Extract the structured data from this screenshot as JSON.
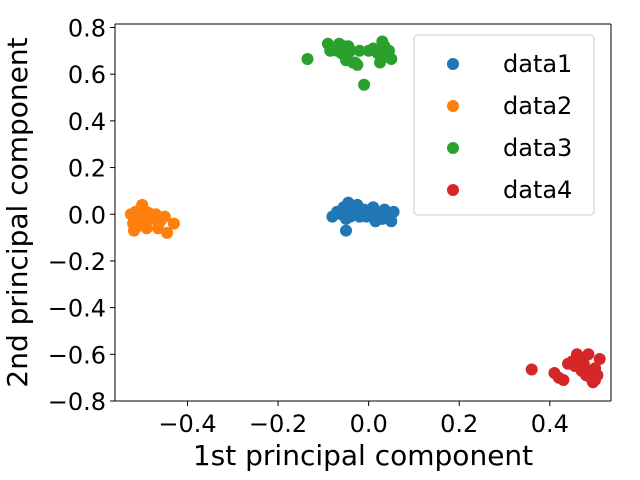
{
  "chart_data": {
    "type": "scatter",
    "title": "",
    "xlabel": "1st principal component",
    "ylabel": "2nd principal component",
    "xlim": [
      -0.56,
      0.535
    ],
    "ylim": [
      -0.8,
      0.815
    ],
    "xticks": [
      -0.4,
      -0.2,
      0.0,
      0.2,
      0.4
    ],
    "xtick_labels": [
      "−0.4",
      "−0.2",
      "0.0",
      "0.2",
      "0.4"
    ],
    "yticks": [
      -0.8,
      -0.6,
      -0.4,
      -0.2,
      0.0,
      0.2,
      0.4,
      0.6,
      0.8
    ],
    "ytick_labels": [
      "−0.8",
      "−0.6",
      "−0.4",
      "−0.2",
      "0.0",
      "0.2",
      "0.4",
      "0.6",
      "0.8"
    ],
    "grid": false,
    "legend_position": "upper-right",
    "series": [
      {
        "name": "data1",
        "color": "#1f77b4",
        "points": [
          [
            -0.08,
            -0.01
          ],
          [
            -0.07,
            0.01
          ],
          [
            -0.06,
            0.0
          ],
          [
            -0.055,
            0.03
          ],
          [
            -0.05,
            -0.02
          ],
          [
            -0.05,
            -0.07
          ],
          [
            -0.045,
            0.05
          ],
          [
            -0.04,
            0.02
          ],
          [
            -0.04,
            -0.01
          ],
          [
            -0.03,
            0.01
          ],
          [
            -0.025,
            0.04
          ],
          [
            -0.02,
            -0.01
          ],
          [
            -0.015,
            0.0
          ],
          [
            -0.01,
            0.02
          ],
          [
            -0.005,
            -0.01
          ],
          [
            0.0,
            0.01
          ],
          [
            0.01,
            0.03
          ],
          [
            0.015,
            -0.03
          ],
          [
            0.02,
            0.0
          ],
          [
            0.03,
            -0.02
          ],
          [
            0.035,
            0.02
          ],
          [
            0.04,
            0.01
          ],
          [
            0.045,
            -0.02
          ],
          [
            0.05,
            -0.03
          ],
          [
            0.055,
            0.01
          ],
          [
            0.005,
            0.02
          ]
        ]
      },
      {
        "name": "data2",
        "color": "#ff7f0e",
        "points": [
          [
            -0.525,
            0.0
          ],
          [
            -0.52,
            -0.04
          ],
          [
            -0.518,
            -0.07
          ],
          [
            -0.515,
            0.01
          ],
          [
            -0.51,
            -0.02
          ],
          [
            -0.508,
            -0.05
          ],
          [
            -0.505,
            0.02
          ],
          [
            -0.5,
            0.04
          ],
          [
            -0.5,
            -0.01
          ],
          [
            -0.495,
            -0.03
          ],
          [
            -0.49,
            -0.06
          ],
          [
            -0.49,
            0.01
          ],
          [
            -0.48,
            -0.02
          ],
          [
            -0.47,
            0.0
          ],
          [
            -0.465,
            -0.06
          ],
          [
            -0.46,
            -0.03
          ],
          [
            -0.45,
            -0.01
          ],
          [
            -0.445,
            -0.08
          ],
          [
            -0.43,
            -0.04
          ],
          [
            -0.498,
            -0.045
          ],
          [
            -0.485,
            0.005
          ]
        ]
      },
      {
        "name": "data3",
        "color": "#2ca02c",
        "points": [
          [
            -0.135,
            0.665
          ],
          [
            -0.09,
            0.73
          ],
          [
            -0.085,
            0.7
          ],
          [
            -0.08,
            0.71
          ],
          [
            -0.07,
            0.7
          ],
          [
            -0.065,
            0.73
          ],
          [
            -0.06,
            0.69
          ],
          [
            -0.055,
            0.72
          ],
          [
            -0.05,
            0.66
          ],
          [
            -0.045,
            0.72
          ],
          [
            -0.04,
            0.7
          ],
          [
            -0.035,
            0.65
          ],
          [
            -0.03,
            0.65
          ],
          [
            -0.025,
            0.64
          ],
          [
            -0.02,
            0.7
          ],
          [
            -0.01,
            0.555
          ],
          [
            0.0,
            0.7
          ],
          [
            0.01,
            0.71
          ],
          [
            0.02,
            0.69
          ],
          [
            0.025,
            0.65
          ],
          [
            0.03,
            0.74
          ],
          [
            0.035,
            0.72
          ],
          [
            0.04,
            0.675
          ],
          [
            0.05,
            0.665
          ],
          [
            0.045,
            0.7
          ]
        ]
      },
      {
        "name": "data4",
        "color": "#d62728",
        "points": [
          [
            0.36,
            -0.665
          ],
          [
            0.41,
            -0.68
          ],
          [
            0.42,
            -0.7
          ],
          [
            0.43,
            -0.71
          ],
          [
            0.44,
            -0.64
          ],
          [
            0.45,
            -0.63
          ],
          [
            0.455,
            -0.65
          ],
          [
            0.46,
            -0.6
          ],
          [
            0.465,
            -0.62
          ],
          [
            0.47,
            -0.67
          ],
          [
            0.475,
            -0.64
          ],
          [
            0.48,
            -0.69
          ],
          [
            0.485,
            -0.6
          ],
          [
            0.49,
            -0.7
          ],
          [
            0.495,
            -0.72
          ],
          [
            0.5,
            -0.66
          ],
          [
            0.505,
            -0.69
          ],
          [
            0.51,
            -0.62
          ],
          [
            0.48,
            -0.665
          ],
          [
            0.5,
            -0.71
          ]
        ]
      }
    ]
  }
}
